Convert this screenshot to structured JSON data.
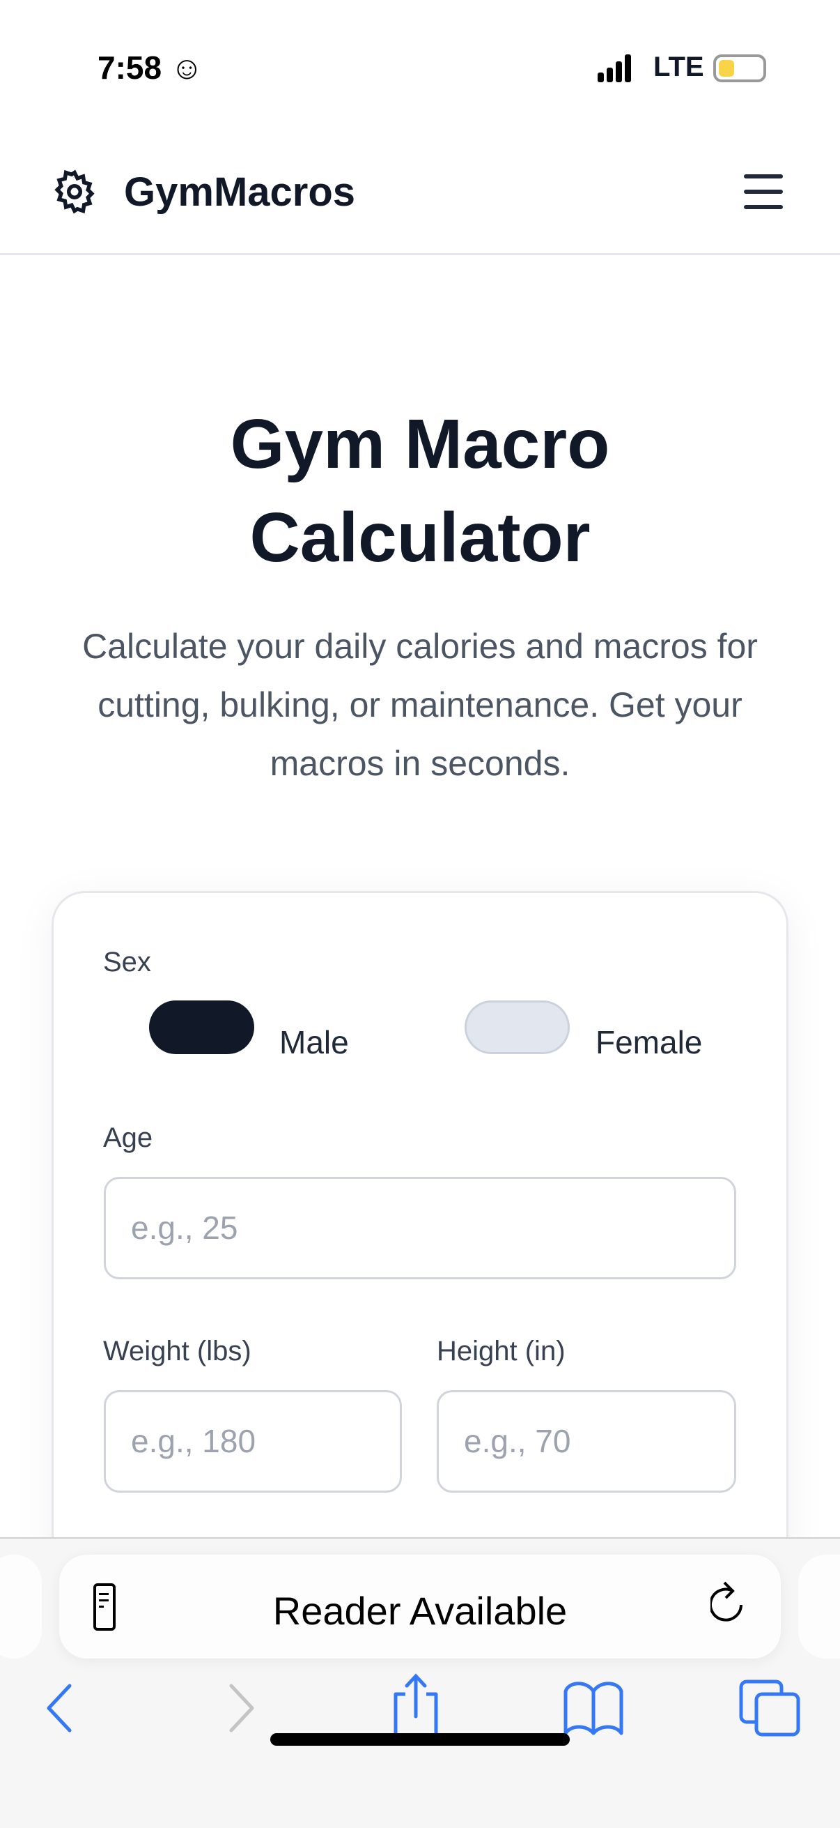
{
  "status_bar": {
    "time": "7:58",
    "network": "LTE",
    "battery_color": "#f9d348"
  },
  "header": {
    "brand": "GymMacros",
    "logo_icon": "gear-icon",
    "menu_icon": "hamburger-icon"
  },
  "hero": {
    "title_line1": "Gym Macro",
    "title_line2": "Calculator",
    "subtitle": "Calculate your daily calories and macros for cutting, bulking, or maintenance. Get your macros in seconds."
  },
  "form": {
    "sex_label": "Sex",
    "sex_options": [
      {
        "label": "Male",
        "selected": true
      },
      {
        "label": "Female",
        "selected": false
      }
    ],
    "age": {
      "label": "Age",
      "placeholder": "e.g., 25",
      "value": ""
    },
    "weight": {
      "label": "Weight (lbs)",
      "placeholder": "e.g., 180",
      "value": ""
    },
    "height": {
      "label": "Height (in)",
      "placeholder": "e.g., 70",
      "value": ""
    }
  },
  "browser": {
    "address_text": "Reader Available",
    "accent": "#3478f6"
  },
  "colors": {
    "primary": "#111827",
    "toggle_off": "#e2e6ee"
  }
}
